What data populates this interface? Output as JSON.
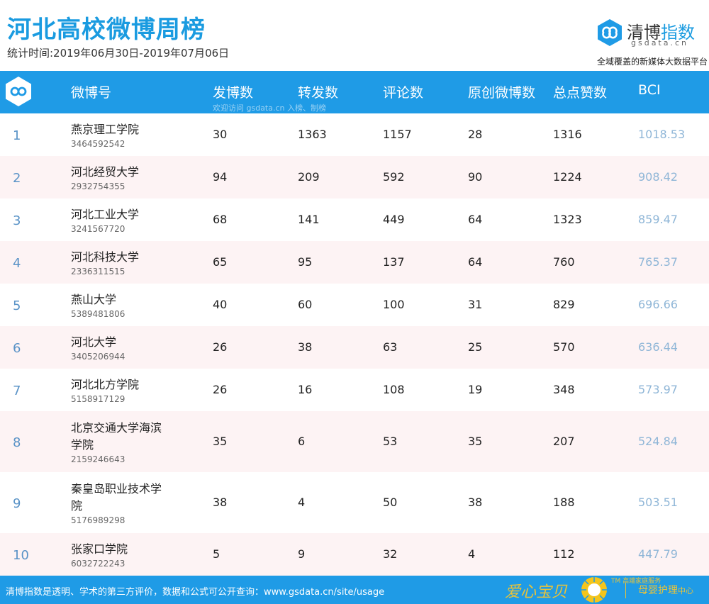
{
  "header": {
    "title": "河北高校微博周榜",
    "subtitle": "统计时间:2019年06月30日-2019年07月06日",
    "brand_name_a": "清博",
    "brand_name_b": "指数",
    "brand_domain": "gsdata.cn",
    "brand_slogan": "全域覆盖的新媒体大数据平台"
  },
  "table": {
    "columns": [
      "微博号",
      "发博数",
      "转发数",
      "评论数",
      "原创微博数",
      "总点赞数",
      "BCI"
    ],
    "watermark": "欢迎访问 gsdata.cn 入榜、制榜",
    "rows": [
      {
        "rank": "1",
        "name": [
          "燕京理工学院"
        ],
        "uid": "3464592542",
        "posts": "30",
        "reposts": "1363",
        "comments": "1157",
        "original": "28",
        "likes": "1316",
        "bci": "1018.53"
      },
      {
        "rank": "2",
        "name": [
          "河北经贸大学"
        ],
        "uid": "2932754355",
        "posts": "94",
        "reposts": "209",
        "comments": "592",
        "original": "90",
        "likes": "1224",
        "bci": "908.42"
      },
      {
        "rank": "3",
        "name": [
          "河北工业大学"
        ],
        "uid": "3241567720",
        "posts": "68",
        "reposts": "141",
        "comments": "449",
        "original": "64",
        "likes": "1323",
        "bci": "859.47"
      },
      {
        "rank": "4",
        "name": [
          "河北科技大学"
        ],
        "uid": "2336311515",
        "posts": "65",
        "reposts": "95",
        "comments": "137",
        "original": "64",
        "likes": "760",
        "bci": "765.37"
      },
      {
        "rank": "5",
        "name": [
          "燕山大学"
        ],
        "uid": "5389481806",
        "posts": "40",
        "reposts": "60",
        "comments": "100",
        "original": "31",
        "likes": "829",
        "bci": "696.66"
      },
      {
        "rank": "6",
        "name": [
          "河北大学"
        ],
        "uid": "3405206944",
        "posts": "26",
        "reposts": "38",
        "comments": "63",
        "original": "25",
        "likes": "570",
        "bci": "636.44"
      },
      {
        "rank": "7",
        "name": [
          "河北北方学院"
        ],
        "uid": "5158917129",
        "posts": "26",
        "reposts": "16",
        "comments": "108",
        "original": "19",
        "likes": "348",
        "bci": "573.97"
      },
      {
        "rank": "8",
        "name": [
          "北京交通大学海滨",
          "学院"
        ],
        "uid": "2159246643",
        "posts": "35",
        "reposts": "6",
        "comments": "53",
        "original": "35",
        "likes": "207",
        "bci": "524.84"
      },
      {
        "rank": "9",
        "name": [
          "秦皇岛职业技术学",
          "院"
        ],
        "uid": "5176989298",
        "posts": "38",
        "reposts": "4",
        "comments": "50",
        "original": "38",
        "likes": "188",
        "bci": "503.51"
      },
      {
        "rank": "10",
        "name": [
          "张家口学院"
        ],
        "uid": "6032722243",
        "posts": "5",
        "reposts": "9",
        "comments": "32",
        "original": "4",
        "likes": "112",
        "bci": "447.79"
      }
    ]
  },
  "footer": {
    "text": "清博指数是透明、学术的第三方评价，数据和公式可公开查询：www.gsdata.cn/site/usage",
    "ad_text": "爱心宝贝",
    "ad_tm": "TM 高端家庭服务",
    "ad_sub_a": "母婴护理",
    "ad_sub_b": "中心"
  },
  "colors": {
    "accent": "#1f9be6",
    "title": "#1a9be0",
    "alt_row": "#fdf3f4",
    "rank": "#5a93c7",
    "bci": "#8fb6d7",
    "ad_gold": "#e8c33a"
  }
}
